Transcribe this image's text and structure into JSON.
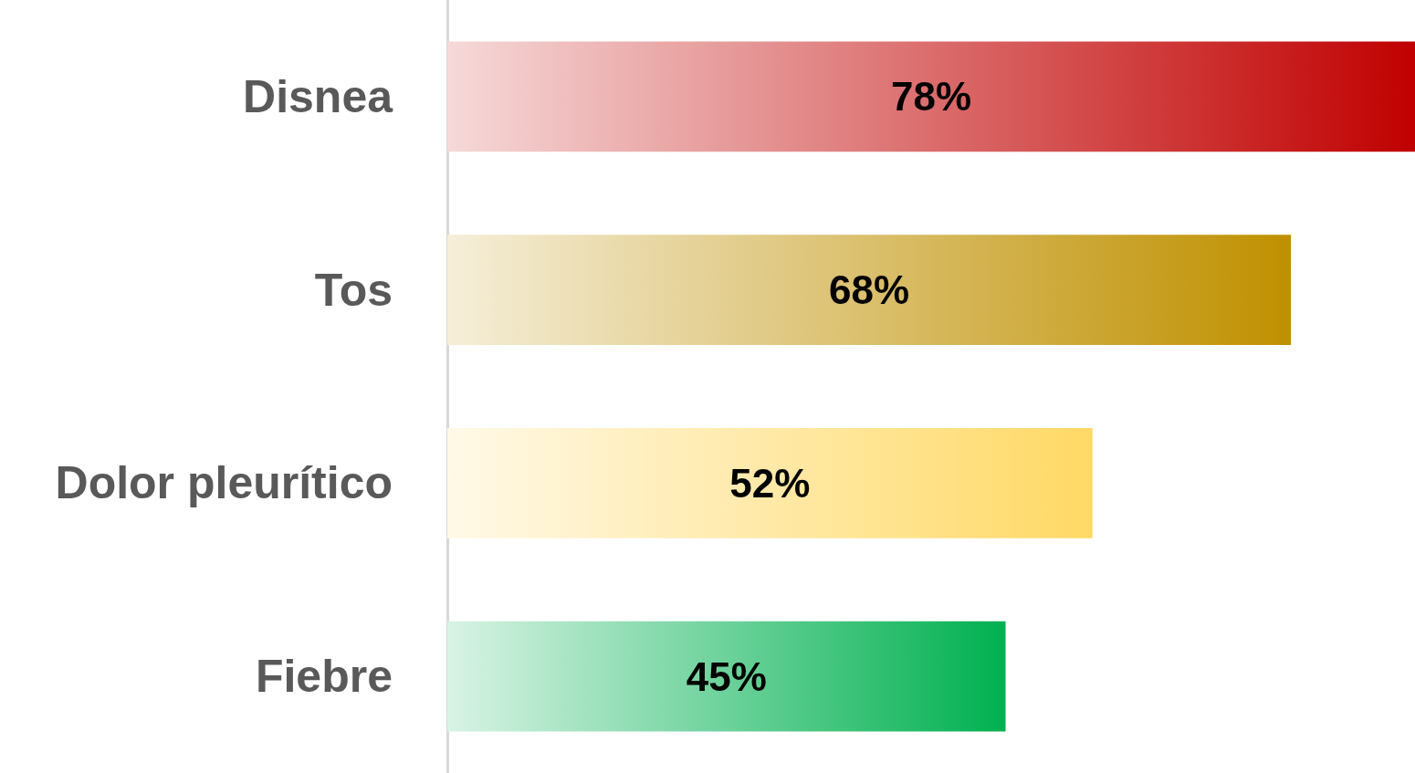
{
  "chart_data": {
    "type": "bar",
    "orientation": "horizontal",
    "categories": [
      "Disnea",
      "Tos",
      "Dolor pleurítico",
      "Fiebre"
    ],
    "values": [
      78,
      68,
      52,
      45
    ],
    "colors": [
      "#c00000",
      "#bf9000",
      "#ffd966",
      "#00b050"
    ],
    "value_labels": [
      "78%",
      "68%",
      "52%",
      "45%"
    ]
  }
}
